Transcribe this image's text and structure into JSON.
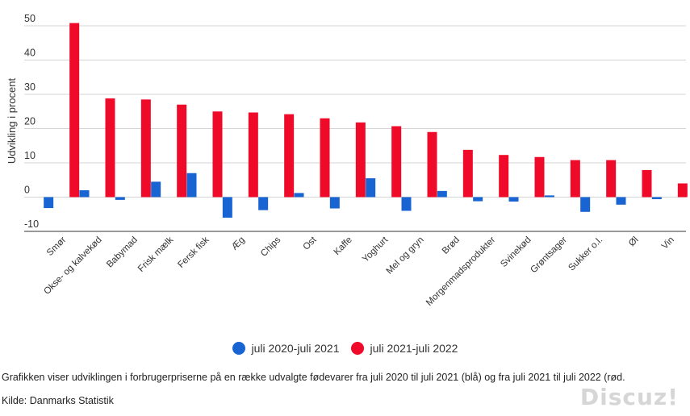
{
  "chart_data": {
    "type": "bar",
    "ylabel": "Udvikling i procent",
    "ylim": [
      -10,
      50
    ],
    "yticks": [
      -10,
      0,
      10,
      20,
      30,
      40,
      50
    ],
    "grid": true,
    "legend_position": "bottom",
    "categories": [
      "Smør",
      "Okse- og kalvekød",
      "Babymad",
      "Frisk mælk",
      "Fersk fisk",
      "Æg",
      "Chips",
      "Ost",
      "Kaffe",
      "Yoghurt",
      "Mel og gryn",
      "Brød",
      "Morgenmadsprodukter",
      "Svinekød",
      "Grøntsager",
      "Sukker o.l.",
      "Øl",
      "Vin"
    ],
    "series": [
      {
        "name": "juli 2020-juli 2021",
        "color": "#1764d2",
        "values": [
          -3.2,
          2.0,
          -0.8,
          4.5,
          7.0,
          -6.0,
          -3.8,
          1.2,
          -3.3,
          5.5,
          -4.0,
          1.8,
          -1.2,
          -1.3,
          0.5,
          -4.3,
          -2.2,
          -0.6
        ]
      },
      {
        "name": "juli 2021-juli 2022",
        "color": "#ee0a28",
        "values": [
          50.8,
          28.8,
          28.5,
          27.0,
          25.0,
          24.7,
          24.2,
          23.0,
          21.8,
          20.7,
          19.0,
          13.8,
          12.3,
          11.7,
          10.8,
          10.8,
          7.9,
          4.0
        ]
      }
    ]
  },
  "caption": "Grafikken viser udviklingen i forbrugerpriserne på en række udvalgte fødevarer fra juli 2020 til juli 2021 (blå) og fra juli 2021 til juli 2022 (rød.",
  "source": "Kilde: Danmarks Statistik",
  "watermark": "Discuz!"
}
